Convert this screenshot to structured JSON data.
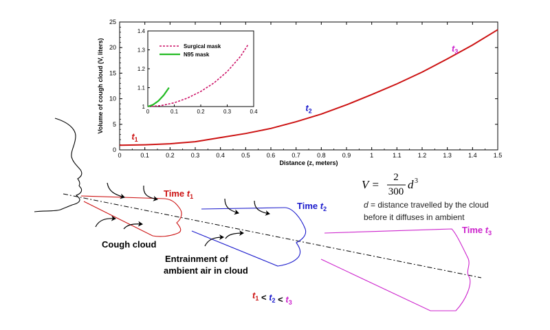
{
  "chart_data": [
    {
      "type": "line",
      "xlabel": "Distance (z, meters)",
      "ylabel": "Volume of cough cloud (V, liters)",
      "xlim": [
        0,
        1.5
      ],
      "ylim": [
        0,
        25
      ],
      "xticks": [
        "0",
        "0.1",
        "0.2",
        "0.3",
        "0.4",
        "0.5",
        "0.6",
        "0.7",
        "0.8",
        "0.9",
        "1",
        "1.1",
        "1.2",
        "1.3",
        "1.4",
        "1.5"
      ],
      "yticks": [
        "0",
        "5",
        "10",
        "15",
        "20",
        "25"
      ],
      "series": [
        {
          "color": "#cc1111",
          "x": [
            0,
            0.1,
            0.2,
            0.3,
            0.4,
            0.5,
            0.6,
            0.7,
            0.8,
            0.9,
            1.0,
            1.1,
            1.2,
            1.3,
            1.4,
            1.5
          ],
          "y": [
            0.9,
            1.0,
            1.2,
            1.6,
            2.4,
            3.2,
            4.2,
            5.5,
            7.0,
            8.8,
            10.8,
            12.9,
            15.2,
            17.8,
            20.5,
            23.5
          ]
        }
      ],
      "annotations": [
        {
          "base": "t",
          "sub": "1",
          "x": 0.06,
          "y": 2.0,
          "color": "#cc1111"
        },
        {
          "base": "t",
          "sub": "2",
          "x": 0.75,
          "y": 7.6,
          "color": "#1a1acc"
        },
        {
          "base": "t",
          "sub": "3",
          "x": 1.33,
          "y": 19.2,
          "color": "#cc22cc"
        }
      ],
      "grid": false
    },
    {
      "type": "line",
      "role": "inset",
      "xlim": [
        0,
        0.4
      ],
      "ylim": [
        1,
        1.4
      ],
      "xticks": [
        "0",
        "0.1",
        "0.2",
        "0.3",
        "0.4"
      ],
      "yticks": [
        "1",
        "1.1",
        "1.2",
        "1.3",
        "1.4"
      ],
      "legend_position": "top-left",
      "series": [
        {
          "name": "Surgical mask",
          "color": "#cc1166",
          "dash": "dashed",
          "x": [
            0,
            0.05,
            0.1,
            0.15,
            0.2,
            0.25,
            0.3,
            0.35,
            0.38
          ],
          "y": [
            1.0,
            1.005,
            1.02,
            1.045,
            1.08,
            1.125,
            1.185,
            1.265,
            1.33
          ]
        },
        {
          "name": "N95 mask",
          "color": "#22bb22",
          "dash": "solid",
          "x": [
            0,
            0.02,
            0.04,
            0.06,
            0.08
          ],
          "y": [
            1.0,
            1.01,
            1.03,
            1.06,
            1.1
          ]
        }
      ]
    }
  ],
  "equation": {
    "lhs": "V =",
    "numerator": "2",
    "denominator": "300",
    "rhs": "d",
    "exponent": "3"
  },
  "definition": {
    "line1_var": "d",
    "line1_rest": " = distance travelled by the cloud",
    "line2": "before it diffuses in ambient"
  },
  "diagram": {
    "time_labels": [
      {
        "text": "Time ",
        "sub_base": "t",
        "sub": "1",
        "color": "#cc1111"
      },
      {
        "text": "Time ",
        "sub_base": "t",
        "sub": "2",
        "color": "#1a1acc"
      },
      {
        "text": "Time ",
        "sub_base": "t",
        "sub": "3",
        "color": "#cc22cc"
      }
    ],
    "cough_cloud_label": "Cough cloud",
    "entrainment_line1": "Entrainment of",
    "entrainment_line2": "ambient air in cloud",
    "ordering": [
      {
        "base": "t",
        "sub": "1",
        "color": "#cc1111"
      },
      {
        "base": " < ",
        "sub": "",
        "color": "#000000"
      },
      {
        "base": "t",
        "sub": "2",
        "color": "#1a1acc"
      },
      {
        "base": " < ",
        "sub": "",
        "color": "#000000"
      },
      {
        "base": "t",
        "sub": "3",
        "color": "#cc22cc"
      }
    ],
    "colors": {
      "t1": "#cc1111",
      "t2": "#1a1acc",
      "t3": "#cc22cc",
      "face": "#000000"
    }
  }
}
